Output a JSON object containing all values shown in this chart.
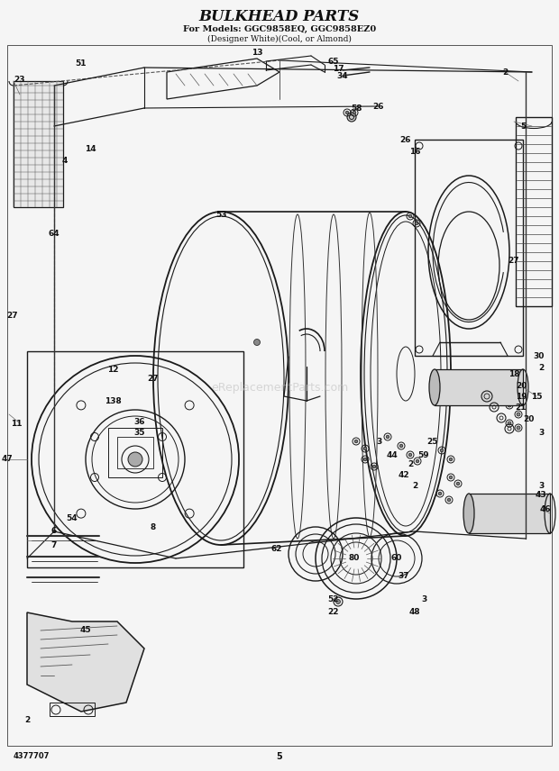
{
  "title": "BULKHEAD PARTS",
  "subtitle1": "For Models: GGC9858EQ, GGC9858EZ0",
  "subtitle2": "(Designer White)(Cool, or Almond)",
  "part_number": "4377707",
  "page_number": "5",
  "bg_color": "#f5f5f5",
  "line_color": "#1a1a1a",
  "text_color": "#111111",
  "watermark": "eReplacementParts.com",
  "title_font": 12,
  "sub1_font": 7,
  "sub2_font": 6.5
}
